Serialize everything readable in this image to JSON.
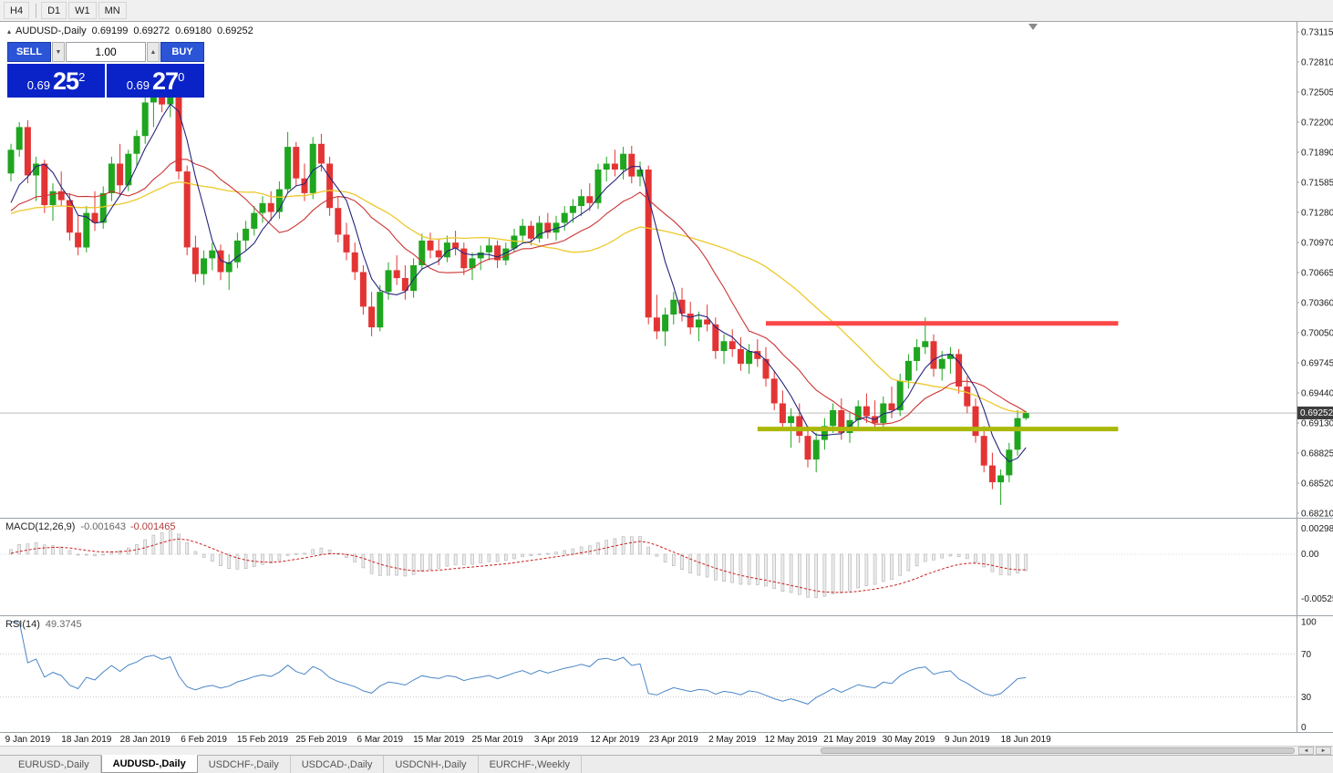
{
  "toolbar": {
    "timeframes": [
      "H4",
      "D1",
      "W1",
      "MN"
    ]
  },
  "chart": {
    "symbol": "AUDUSD-,Daily",
    "open": "0.69199",
    "high": "0.69272",
    "low": "0.69180",
    "close": "0.69252",
    "current_price_label": "0.69252"
  },
  "trade_panel": {
    "sell_label": "SELL",
    "buy_label": "BUY",
    "volume": "1.00",
    "bid": {
      "prefix": "0.69",
      "pips": "25",
      "point": "2"
    },
    "ask": {
      "prefix": "0.69",
      "pips": "27",
      "point": "0"
    }
  },
  "macd": {
    "label": "MACD(12,26,9)",
    "value_main": "-0.001643",
    "value_signal": "-0.001465",
    "axis": [
      "0.002984",
      "0.00",
      "-0.005256"
    ]
  },
  "rsi": {
    "label": "RSI(14)",
    "value": "49.3745",
    "axis": [
      "100",
      "70",
      "30",
      "0"
    ]
  },
  "price_axis": [
    "0.73115",
    "0.72810",
    "0.72505",
    "0.72200",
    "0.71890",
    "0.71585",
    "0.71280",
    "0.70970",
    "0.70665",
    "0.70360",
    "0.70050",
    "0.69745",
    "0.69440",
    "0.69130",
    "0.68825",
    "0.68520",
    "0.68210"
  ],
  "dates": [
    "9 Jan 2019",
    "18 Jan 2019",
    "28 Jan 2019",
    "6 Feb 2019",
    "15 Feb 2019",
    "25 Feb 2019",
    "6 Mar 2019",
    "15 Mar 2019",
    "25 Mar 2019",
    "3 Apr 2019",
    "12 Apr 2019",
    "23 Apr 2019",
    "2 May 2019",
    "12 May 2019",
    "21 May 2019",
    "30 May 2019",
    "9 Jun 2019",
    "18 Jun 2019"
  ],
  "tabs": [
    {
      "label": "EURUSD-,Daily",
      "active": false
    },
    {
      "label": "AUDUSD-,Daily",
      "active": true
    },
    {
      "label": "USDCHF-,Daily",
      "active": false
    },
    {
      "label": "USDCAD-,Daily",
      "active": false
    },
    {
      "label": "USDCNH-,Daily",
      "active": false
    },
    {
      "label": "EURCHF-,Weekly",
      "active": false
    }
  ],
  "icons": {
    "one_click_toggle": "▴",
    "spinner_down": "▼",
    "spinner_up": "▲",
    "scroll_left": "◄",
    "scroll_right": "►"
  },
  "colors": {
    "candle_up": "#1fa51f",
    "candle_down": "#e33434",
    "ma_fast": "#26267e",
    "ma_mid": "#cc3333",
    "ma_slow": "#edc92c",
    "level_resistance": "#fb4747",
    "level_support": "#aab80a",
    "macd_hist_fill": "#ececec",
    "macd_hist_stroke": "#b0b0b0",
    "macd_signal": "#cc2020",
    "rsi_line": "#4a86c8",
    "price_line": "#bdbdbd",
    "accent_blue": "#2b55d6",
    "price_box_blue": "#0a23c8"
  },
  "chart_data": {
    "type": "candlestick",
    "symbol": "AUDUSD",
    "timeframe": "Daily",
    "current_price": 0.69252,
    "price_range": [
      0.6821,
      0.73115
    ],
    "prehistory_pad": 0.7125,
    "indicators": {
      "ma_fast": 5,
      "ma_mid": 13,
      "ma_slow": 30,
      "macd": [
        12,
        26,
        9
      ],
      "rsi": 14
    },
    "levels": [
      {
        "type": "resistance",
        "color": "#fb4747",
        "price": 0.7016,
        "from_index": 90,
        "to_index": 132
      },
      {
        "type": "support",
        "color": "#aab80a",
        "price": 0.6909,
        "from_index": 89,
        "to_index": 132
      }
    ],
    "candles": [
      [
        0.7168,
        0.7198,
        0.716,
        0.7192
      ],
      [
        0.7192,
        0.722,
        0.7185,
        0.7215
      ],
      [
        0.7215,
        0.7222,
        0.7158,
        0.7166
      ],
      [
        0.7166,
        0.7185,
        0.714,
        0.7178
      ],
      [
        0.7178,
        0.7182,
        0.7128,
        0.7136
      ],
      [
        0.7136,
        0.7158,
        0.712,
        0.715
      ],
      [
        0.715,
        0.717,
        0.7135,
        0.7141
      ],
      [
        0.7141,
        0.7148,
        0.71,
        0.7108
      ],
      [
        0.7108,
        0.7125,
        0.7085,
        0.7093
      ],
      [
        0.7093,
        0.7135,
        0.7088,
        0.7128
      ],
      [
        0.7128,
        0.715,
        0.711,
        0.7118
      ],
      [
        0.7118,
        0.7155,
        0.7112,
        0.7148
      ],
      [
        0.7148,
        0.7185,
        0.714,
        0.7178
      ],
      [
        0.7178,
        0.7198,
        0.7145,
        0.7156
      ],
      [
        0.7156,
        0.7192,
        0.715,
        0.7188
      ],
      [
        0.7188,
        0.7212,
        0.7175,
        0.7206
      ],
      [
        0.7206,
        0.7246,
        0.7198,
        0.724
      ],
      [
        0.724,
        0.7258,
        0.7215,
        0.7252
      ],
      [
        0.7252,
        0.7268,
        0.723,
        0.7238
      ],
      [
        0.7238,
        0.7262,
        0.7225,
        0.7255
      ],
      [
        0.7255,
        0.726,
        0.7162,
        0.717
      ],
      [
        0.717,
        0.7176,
        0.7085,
        0.7093
      ],
      [
        0.7093,
        0.7105,
        0.7058,
        0.7066
      ],
      [
        0.7066,
        0.709,
        0.7055,
        0.7082
      ],
      [
        0.7082,
        0.7098,
        0.707,
        0.709
      ],
      [
        0.709,
        0.7096,
        0.706,
        0.7068
      ],
      [
        0.7068,
        0.7086,
        0.705,
        0.7078
      ],
      [
        0.7078,
        0.7108,
        0.7072,
        0.71
      ],
      [
        0.71,
        0.712,
        0.709,
        0.7112
      ],
      [
        0.7112,
        0.7135,
        0.7105,
        0.7128
      ],
      [
        0.7128,
        0.7145,
        0.7118,
        0.7138
      ],
      [
        0.7138,
        0.715,
        0.712,
        0.7129
      ],
      [
        0.7129,
        0.716,
        0.7122,
        0.7152
      ],
      [
        0.7152,
        0.721,
        0.7148,
        0.7195
      ],
      [
        0.7195,
        0.72,
        0.7155,
        0.7163
      ],
      [
        0.7163,
        0.7178,
        0.714,
        0.7148
      ],
      [
        0.7148,
        0.7205,
        0.7142,
        0.7198
      ],
      [
        0.7198,
        0.7208,
        0.717,
        0.7178
      ],
      [
        0.7178,
        0.7185,
        0.7125,
        0.7133
      ],
      [
        0.7133,
        0.7145,
        0.7098,
        0.7106
      ],
      [
        0.7106,
        0.7118,
        0.708,
        0.7088
      ],
      [
        0.7088,
        0.7098,
        0.706,
        0.7068
      ],
      [
        0.7068,
        0.7075,
        0.7025,
        0.7033
      ],
      [
        0.7033,
        0.7048,
        0.7003,
        0.7012
      ],
      [
        0.7012,
        0.7055,
        0.7008,
        0.7048
      ],
      [
        0.7048,
        0.7078,
        0.704,
        0.707
      ],
      [
        0.707,
        0.7085,
        0.7055,
        0.7062
      ],
      [
        0.7062,
        0.7075,
        0.704,
        0.7049
      ],
      [
        0.7049,
        0.7082,
        0.7042,
        0.7075
      ],
      [
        0.7075,
        0.7107,
        0.707,
        0.71
      ],
      [
        0.71,
        0.7108,
        0.7082,
        0.709
      ],
      [
        0.709,
        0.7102,
        0.7075,
        0.7083
      ],
      [
        0.7083,
        0.7105,
        0.7078,
        0.7098
      ],
      [
        0.7098,
        0.711,
        0.7085,
        0.7092
      ],
      [
        0.7092,
        0.7098,
        0.7065,
        0.7072
      ],
      [
        0.7072,
        0.7088,
        0.706,
        0.7082
      ],
      [
        0.7082,
        0.7095,
        0.707,
        0.7088
      ],
      [
        0.7088,
        0.7102,
        0.708,
        0.7095
      ],
      [
        0.7095,
        0.71,
        0.7072,
        0.708
      ],
      [
        0.708,
        0.7098,
        0.7075,
        0.7092
      ],
      [
        0.7092,
        0.7112,
        0.7088,
        0.7105
      ],
      [
        0.7105,
        0.7122,
        0.7098,
        0.7115
      ],
      [
        0.7115,
        0.712,
        0.7095,
        0.7102
      ],
      [
        0.7102,
        0.7125,
        0.7098,
        0.7118
      ],
      [
        0.7118,
        0.7128,
        0.7102,
        0.7108
      ],
      [
        0.7108,
        0.7125,
        0.71,
        0.7118
      ],
      [
        0.7118,
        0.7135,
        0.711,
        0.7128
      ],
      [
        0.7128,
        0.7142,
        0.7118,
        0.7135
      ],
      [
        0.7135,
        0.7152,
        0.7125,
        0.7145
      ],
      [
        0.7145,
        0.7158,
        0.713,
        0.7138
      ],
      [
        0.7138,
        0.7178,
        0.7132,
        0.7172
      ],
      [
        0.7172,
        0.7185,
        0.716,
        0.7178
      ],
      [
        0.7178,
        0.7192,
        0.7165,
        0.7172
      ],
      [
        0.7172,
        0.7195,
        0.7162,
        0.7188
      ],
      [
        0.7188,
        0.7196,
        0.7158,
        0.7165
      ],
      [
        0.7165,
        0.718,
        0.7155,
        0.7172
      ],
      [
        0.7172,
        0.7176,
        0.7015,
        0.7022
      ],
      [
        0.7022,
        0.7045,
        0.7,
        0.7008
      ],
      [
        0.7008,
        0.7032,
        0.6993,
        0.7025
      ],
      [
        0.7025,
        0.7048,
        0.7015,
        0.704
      ],
      [
        0.704,
        0.7052,
        0.7018,
        0.7026
      ],
      [
        0.7026,
        0.7038,
        0.7005,
        0.7012
      ],
      [
        0.7012,
        0.7028,
        0.6998,
        0.702
      ],
      [
        0.702,
        0.7035,
        0.7008,
        0.7015
      ],
      [
        0.7015,
        0.7022,
        0.698,
        0.6988
      ],
      [
        0.6988,
        0.7005,
        0.6975,
        0.6998
      ],
      [
        0.6998,
        0.701,
        0.6982,
        0.699
      ],
      [
        0.699,
        0.7002,
        0.6968,
        0.6975
      ],
      [
        0.6975,
        0.6995,
        0.6965,
        0.6988
      ],
      [
        0.6988,
        0.7,
        0.6972,
        0.698
      ],
      [
        0.698,
        0.6992,
        0.6952,
        0.696
      ],
      [
        0.696,
        0.6968,
        0.6928,
        0.6935
      ],
      [
        0.6935,
        0.6948,
        0.6908,
        0.6915
      ],
      [
        0.6915,
        0.693,
        0.689,
        0.6922
      ],
      [
        0.6922,
        0.6935,
        0.6895,
        0.6902
      ],
      [
        0.6902,
        0.6912,
        0.687,
        0.6878
      ],
      [
        0.6878,
        0.6905,
        0.6865,
        0.6898
      ],
      [
        0.6898,
        0.692,
        0.6888,
        0.6912
      ],
      [
        0.6912,
        0.6935,
        0.6905,
        0.6928
      ],
      [
        0.6928,
        0.694,
        0.6898,
        0.6905
      ],
      [
        0.6905,
        0.6925,
        0.6895,
        0.6918
      ],
      [
        0.6918,
        0.6938,
        0.691,
        0.6932
      ],
      [
        0.6932,
        0.6945,
        0.6915,
        0.6922
      ],
      [
        0.6922,
        0.6938,
        0.6908,
        0.6915
      ],
      [
        0.6915,
        0.6942,
        0.691,
        0.6935
      ],
      [
        0.6935,
        0.6952,
        0.692,
        0.6928
      ],
      [
        0.6928,
        0.6965,
        0.6922,
        0.6958
      ],
      [
        0.6958,
        0.6985,
        0.695,
        0.6978
      ],
      [
        0.6978,
        0.7,
        0.6968,
        0.6992
      ],
      [
        0.6992,
        0.7022,
        0.6985,
        0.6998
      ],
      [
        0.6998,
        0.7005,
        0.6962,
        0.697
      ],
      [
        0.697,
        0.6988,
        0.6958,
        0.698
      ],
      [
        0.698,
        0.6992,
        0.6965,
        0.6985
      ],
      [
        0.6985,
        0.699,
        0.6945,
        0.6952
      ],
      [
        0.6952,
        0.6962,
        0.6925,
        0.6932
      ],
      [
        0.6932,
        0.694,
        0.6895,
        0.6902
      ],
      [
        0.6902,
        0.6912,
        0.6865,
        0.6872
      ],
      [
        0.6872,
        0.6885,
        0.6848,
        0.6855
      ],
      [
        0.6855,
        0.6868,
        0.6832,
        0.6862
      ],
      [
        0.6862,
        0.6895,
        0.6855,
        0.6888
      ],
      [
        0.6888,
        0.6928,
        0.6882,
        0.692
      ],
      [
        0.69199,
        0.69272,
        0.6918,
        0.69252
      ]
    ]
  }
}
